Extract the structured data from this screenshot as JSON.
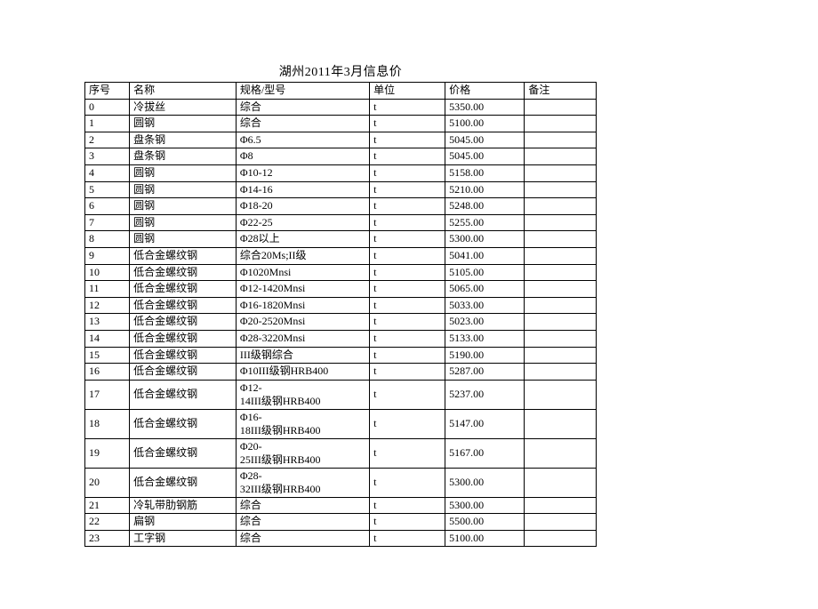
{
  "title": "湖州2011年3月信息价",
  "table": {
    "headers": {
      "seq": "序号",
      "name": "名称",
      "spec": "规格/型号",
      "unit": "单位",
      "price": "价格",
      "note": "备注"
    },
    "rows": [
      {
        "seq": "0",
        "name": "冷拔丝",
        "spec": "综合",
        "unit": "t",
        "price": "5350.00",
        "note": ""
      },
      {
        "seq": "1",
        "name": "圆钢",
        "spec": "综合",
        "unit": "t",
        "price": "5100.00",
        "note": ""
      },
      {
        "seq": "2",
        "name": "盘条钢",
        "spec": "Φ6.5",
        "unit": "t",
        "price": "5045.00",
        "note": ""
      },
      {
        "seq": "3",
        "name": "盘条钢",
        "spec": "Φ8",
        "unit": "t",
        "price": "5045.00",
        "note": ""
      },
      {
        "seq": "4",
        "name": "圆钢",
        "spec": "Φ10-12",
        "unit": "t",
        "price": "5158.00",
        "note": ""
      },
      {
        "seq": "5",
        "name": "圆钢",
        "spec": "Φ14-16",
        "unit": "t",
        "price": "5210.00",
        "note": ""
      },
      {
        "seq": "6",
        "name": "圆钢",
        "spec": "Φ18-20",
        "unit": "t",
        "price": "5248.00",
        "note": ""
      },
      {
        "seq": "7",
        "name": "圆钢",
        "spec": "Φ22-25",
        "unit": "t",
        "price": "5255.00",
        "note": ""
      },
      {
        "seq": "8",
        "name": "圆钢",
        "spec": "Φ28以上",
        "unit": "t",
        "price": "5300.00",
        "note": ""
      },
      {
        "seq": "9",
        "name": "低合金螺纹钢",
        "spec": "综合20Ms;II级",
        "unit": "t",
        "price": "5041.00",
        "note": ""
      },
      {
        "seq": "10",
        "name": "低合金螺纹钢",
        "spec": "Φ1020Mnsi",
        "unit": "t",
        "price": "5105.00",
        "note": ""
      },
      {
        "seq": "11",
        "name": "低合金螺纹钢",
        "spec": "Φ12-1420Mnsi",
        "unit": "t",
        "price": "5065.00",
        "note": ""
      },
      {
        "seq": "12",
        "name": "低合金螺纹钢",
        "spec": "Φ16-1820Mnsi",
        "unit": "t",
        "price": "5033.00",
        "note": ""
      },
      {
        "seq": "13",
        "name": "低合金螺纹钢",
        "spec": "Φ20-2520Mnsi",
        "unit": "t",
        "price": "5023.00",
        "note": ""
      },
      {
        "seq": "14",
        "name": "低合金螺纹钢",
        "spec": "Φ28-3220Mnsi",
        "unit": "t",
        "price": "5133.00",
        "note": ""
      },
      {
        "seq": "15",
        "name": "低合金螺纹钢",
        "spec": "III级钢综合",
        "unit": "t",
        "price": "5190.00",
        "note": ""
      },
      {
        "seq": "16",
        "name": "低合金螺纹钢",
        "spec": "Φ10III级钢HRB400",
        "unit": "t",
        "price": "5287.00",
        "note": ""
      },
      {
        "seq": "17",
        "name": "低合金螺纹钢",
        "spec": "Φ12-\n14III级钢HRB400",
        "unit": "t",
        "price": "5237.00",
        "note": "",
        "multiline": true
      },
      {
        "seq": "18",
        "name": "低合金螺纹钢",
        "spec": "Φ16-\n18III级钢HRB400",
        "unit": "t",
        "price": "5147.00",
        "note": "",
        "multiline": true
      },
      {
        "seq": "19",
        "name": "低合金螺纹钢",
        "spec": "Φ20-\n25III级钢HRB400",
        "unit": "t",
        "price": "5167.00",
        "note": "",
        "multiline": true
      },
      {
        "seq": "20",
        "name": "低合金螺纹钢",
        "spec": "Φ28-\n32III级钢HRB400",
        "unit": "t",
        "price": "5300.00",
        "note": "",
        "multiline": true
      },
      {
        "seq": "21",
        "name": "冷轧带肋钢筋",
        "spec": "综合",
        "unit": "t",
        "price": "5300.00",
        "note": ""
      },
      {
        "seq": "22",
        "name": "扁钢",
        "spec": "综合",
        "unit": "t",
        "price": "5500.00",
        "note": ""
      },
      {
        "seq": "23",
        "name": "工字钢",
        "spec": "综合",
        "unit": "t",
        "price": "5100.00",
        "note": ""
      }
    ]
  }
}
